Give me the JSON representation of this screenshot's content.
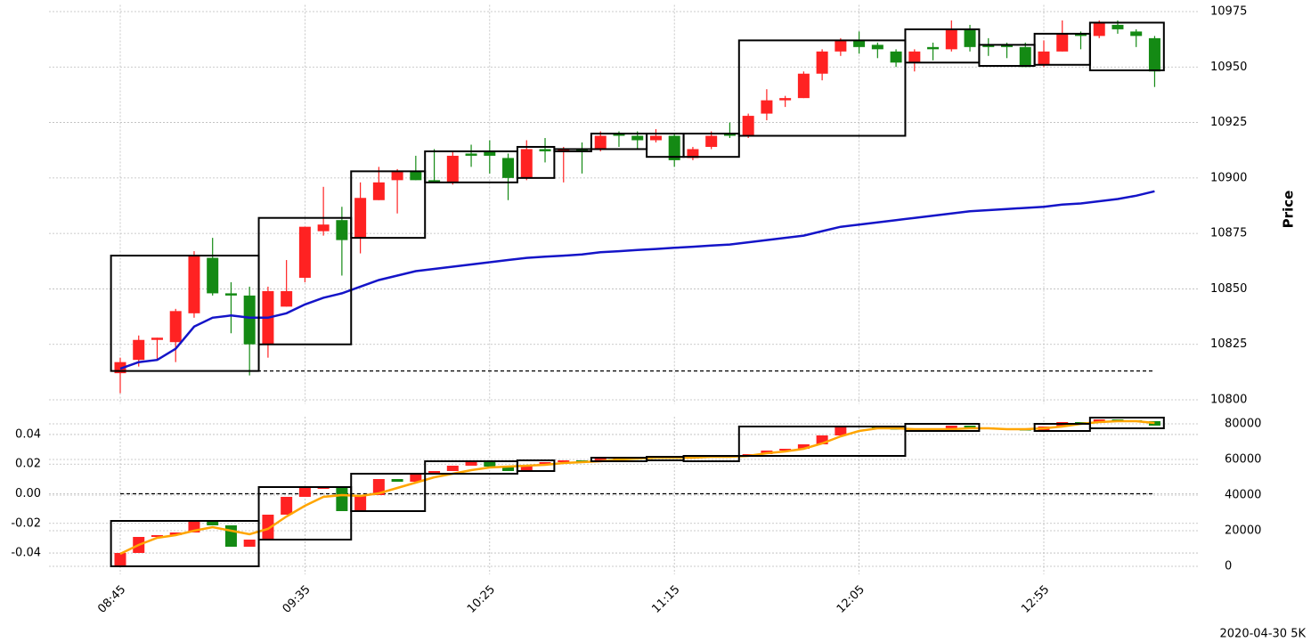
{
  "chart_data": [
    {
      "type": "candlestick",
      "open": [
        10812,
        10818,
        10827,
        10826,
        10839,
        10864,
        10848,
        10847,
        10825,
        10842,
        10855,
        10876,
        10881,
        10873,
        10890,
        10899,
        10903,
        10899,
        10898,
        10911,
        10912,
        10909,
        10900,
        10913,
        10912,
        10913,
        10913,
        10920,
        10919,
        10917,
        10919,
        10909,
        10914,
        10920,
        10919,
        10929,
        10935,
        10936,
        10947,
        10957,
        10962,
        10960,
        10957,
        10952,
        10959,
        10958,
        10967,
        10960,
        10960,
        10959,
        10951,
        10957,
        10965,
        10964,
        10969,
        10966,
        10963
      ],
      "high": [
        10819,
        10829,
        10828,
        10841,
        10867,
        10873,
        10853,
        10851,
        10851,
        10863,
        10878,
        10896,
        10887,
        10898,
        10905,
        10904,
        10910,
        10913,
        10912,
        10915,
        10917,
        10911,
        10917,
        10918,
        10914,
        10916,
        10921,
        10921,
        10921,
        10922,
        10920,
        10914,
        10921,
        10925,
        10929,
        10940,
        10937,
        10948,
        10958,
        10963,
        10966,
        10961,
        10958,
        10958,
        10961,
        10971,
        10969,
        10963,
        10961,
        10961,
        10962,
        10971,
        10966,
        10971,
        10971,
        10967,
        10964
      ],
      "low": [
        10803,
        10815,
        10818,
        10817,
        10837,
        10847,
        10830,
        10811,
        10819,
        10842,
        10853,
        10874,
        10856,
        10866,
        10890,
        10884,
        10899,
        10898,
        10897,
        10905,
        10902,
        10890,
        10899,
        10907,
        10898,
        10902,
        10912,
        10914,
        10913,
        10916,
        10905,
        10908,
        10913,
        10918,
        10918,
        10926,
        10932,
        10936,
        10944,
        10955,
        10956,
        10954,
        10950,
        10948,
        10953,
        10957,
        10957,
        10955,
        10954,
        10950,
        10950,
        10957,
        10958,
        10963,
        10965,
        10959,
        10941
      ],
      "close": [
        10817,
        10827,
        10828,
        10840,
        10865,
        10848,
        10847,
        10825,
        10849,
        10849,
        10878,
        10879,
        10872,
        10891,
        10898,
        10903,
        10899,
        10898,
        10910,
        10910,
        10910,
        10900,
        10913,
        10912,
        10913,
        10912,
        10919,
        10919,
        10917,
        10919,
        10908,
        10913,
        10919,
        10919,
        10928,
        10935,
        10936,
        10947,
        10957,
        10962,
        10959,
        10958,
        10952,
        10957,
        10958,
        10967,
        10959,
        10959,
        10959,
        10950,
        10957,
        10965,
        10964,
        10970,
        10967,
        10964,
        10948
      ],
      "up_color": "#ff2222",
      "down_color": "#148a14",
      "ylim": [
        10798,
        10978
      ],
      "yticks": [
        10800,
        10825,
        10850,
        10875,
        10900,
        10925,
        10950,
        10975
      ],
      "ylabel": "Price",
      "grid": true,
      "series": [
        {
          "color": "#1414c8",
          "values": [
            10814,
            10817,
            10818,
            10823,
            10833,
            10837,
            10838,
            10837,
            10837,
            10839,
            10843,
            10846,
            10848,
            10851,
            10854,
            10856,
            10858,
            10859,
            10860,
            10861,
            10862,
            10863,
            10864,
            10864.5,
            10865,
            10865.5,
            10866.5,
            10867,
            10867.5,
            10868,
            10868.5,
            10869,
            10869.5,
            10870,
            10871,
            10872,
            10873,
            10874,
            10876,
            10878,
            10879,
            10880,
            10881,
            10882,
            10883,
            10884,
            10885,
            10885.5,
            10886,
            10886.5,
            10887,
            10888,
            10888.5,
            10889.5,
            10890.5,
            10892,
            10894
          ]
        }
      ],
      "hlines": [
        10813
      ],
      "boxes": [
        {
          "start": 0,
          "end": 7,
          "bottom": 10813,
          "top": 10865
        },
        {
          "start": 8,
          "end": 12,
          "bottom": 10825,
          "top": 10882
        },
        {
          "start": 13,
          "end": 16,
          "bottom": 10873,
          "top": 10903
        },
        {
          "start": 17,
          "end": 21,
          "bottom": 10898,
          "top": 10912
        },
        {
          "start": 22,
          "end": 23,
          "bottom": 10900,
          "top": 10914
        },
        {
          "start": 24,
          "end": 25,
          "bottom": 10912,
          "top": 10913
        },
        {
          "start": 26,
          "end": 28,
          "bottom": 10913,
          "top": 10920
        },
        {
          "start": 29,
          "end": 30,
          "bottom": 10909.5,
          "top": 10920
        },
        {
          "start": 31,
          "end": 33,
          "bottom": 10909.5,
          "top": 10920
        },
        {
          "start": 34,
          "end": 42,
          "bottom": 10919,
          "top": 10962
        },
        {
          "start": 43,
          "end": 46,
          "bottom": 10952,
          "top": 10967
        },
        {
          "start": 47,
          "end": 49,
          "bottom": 10950.5,
          "top": 10960
        },
        {
          "start": 50,
          "end": 52,
          "bottom": 10951,
          "top": 10965
        },
        {
          "start": 53,
          "end": 56,
          "bottom": 10948.5,
          "top": 10970
        }
      ]
    },
    {
      "type": "candlestick",
      "x": [
        "08:45",
        null,
        null,
        null,
        null,
        null,
        null,
        null,
        null,
        null,
        "09:35",
        null,
        null,
        null,
        null,
        null,
        null,
        null,
        null,
        null,
        "10:25",
        null,
        null,
        null,
        null,
        null,
        null,
        null,
        null,
        null,
        "11:15",
        null,
        null,
        null,
        null,
        null,
        null,
        null,
        null,
        null,
        "12:05",
        null,
        null,
        null,
        null,
        null,
        null,
        null,
        null,
        null,
        "12:55",
        null,
        null,
        null,
        null,
        null,
        null
      ],
      "open": [
        0,
        7500,
        16500,
        17500,
        19000,
        25500,
        23000,
        11000,
        15000,
        29000,
        39000,
        43500,
        44500,
        31000,
        40000,
        49000,
        47500,
        52000,
        53500,
        56500,
        58500,
        56000,
        53500,
        57000,
        58500,
        59500,
        59000,
        60500,
        61000,
        60500,
        61500,
        60500,
        61500,
        62000,
        61500,
        63000,
        65000,
        66000,
        68500,
        73500,
        79000,
        78000,
        77500,
        77000,
        77500,
        77000,
        79000,
        78000,
        77500,
        77000,
        76500,
        78500,
        81000,
        80500,
        82500,
        82000,
        81500
      ],
      "close": [
        7500,
        16500,
        17500,
        19000,
        25500,
        23000,
        11000,
        15000,
        29000,
        39000,
        44500,
        44500,
        31000,
        40000,
        49000,
        47500,
        52000,
        53500,
        56500,
        58500,
        56000,
        53500,
        57000,
        58500,
        59500,
        59000,
        60500,
        61000,
        60500,
        61500,
        60500,
        61500,
        62000,
        61500,
        63000,
        65000,
        66000,
        68500,
        73500,
        79000,
        78000,
        77500,
        77000,
        77500,
        77000,
        79000,
        78000,
        77500,
        77000,
        76500,
        78500,
        81000,
        80500,
        82500,
        82000,
        81500,
        79000
      ],
      "axis": "y2",
      "up_color": "#ff2222",
      "down_color": "#148a14",
      "ylim": [
        -0.0544,
        0.052
      ],
      "yticks": [
        -0.04,
        -0.02,
        {
          "value": 0,
          "label": "0.00"
        },
        0.02,
        0.04
      ],
      "y2lim": [
        -4500,
        84000
      ],
      "y2ticks": [
        0,
        20000,
        40000,
        60000,
        80000
      ],
      "grid": true,
      "hlines": [
        0
      ],
      "series": [
        {
          "color": "#ffa500",
          "axis": "y2",
          "values": [
            7000,
            12000,
            16000,
            17500,
            20000,
            22000,
            20000,
            18000,
            21000,
            28000,
            34000,
            39000,
            40000,
            39500,
            41000,
            44000,
            47000,
            50000,
            52000,
            54000,
            55500,
            56000,
            56500,
            57000,
            58000,
            58500,
            59000,
            60000,
            60500,
            61000,
            61000,
            61000,
            61500,
            61500,
            62000,
            63500,
            64500,
            66000,
            69000,
            73000,
            76000,
            77500,
            77500,
            77000,
            77000,
            77000,
            77500,
            77500,
            77000,
            77000,
            77500,
            78500,
            80000,
            81000,
            81500,
            81500,
            80500
          ]
        }
      ],
      "boxes": [
        {
          "start": 0,
          "end": 7,
          "bottom": 0,
          "top": 25500
        },
        {
          "start": 8,
          "end": 12,
          "bottom": 15000,
          "top": 44500
        },
        {
          "start": 13,
          "end": 16,
          "bottom": 31000,
          "top": 52000
        },
        {
          "start": 17,
          "end": 21,
          "bottom": 52000,
          "top": 59000
        },
        {
          "start": 22,
          "end": 23,
          "bottom": 53500,
          "top": 59500
        },
        {
          "start": 26,
          "end": 28,
          "bottom": 59000,
          "top": 61000
        },
        {
          "start": 29,
          "end": 30,
          "bottom": 59500,
          "top": 61500
        },
        {
          "start": 31,
          "end": 33,
          "bottom": 59000,
          "top": 62000
        },
        {
          "start": 34,
          "end": 42,
          "bottom": 62000,
          "top": 78500
        },
        {
          "start": 43,
          "end": 46,
          "bottom": 76000,
          "top": 80000
        },
        {
          "start": 50,
          "end": 52,
          "bottom": 76000,
          "top": 80000
        },
        {
          "start": 53,
          "end": 56,
          "bottom": 77500,
          "top": 83500
        }
      ]
    }
  ],
  "footer": "2020-04-30 5K"
}
